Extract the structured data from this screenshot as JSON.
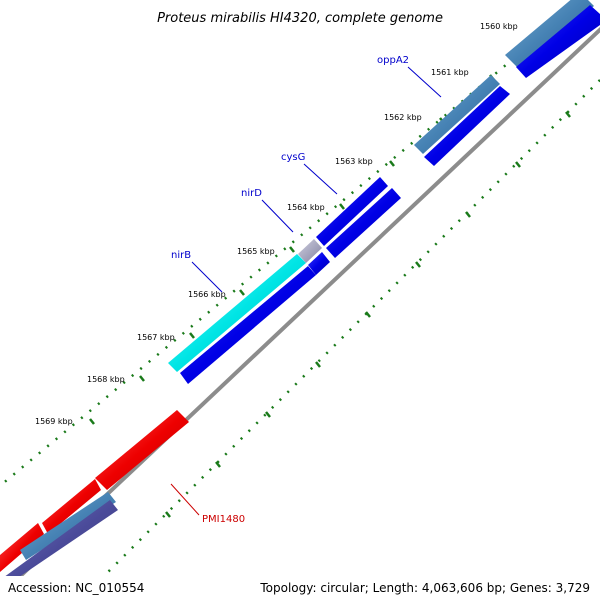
{
  "title": "Proteus mirabilis HI4320, complete genome",
  "footer": {
    "accession": "Accession: NC_010554",
    "summary": "Topology: circular; Length: 4,063,606 bp; Genes: 3,729"
  },
  "ticks": [
    "1560 kbp",
    "1561 kbp",
    "1562 kbp",
    "1563 kbp",
    "1564 kbp",
    "1565 kbp",
    "1566 kbp",
    "1567 kbp",
    "1568 kbp",
    "1569 kbp"
  ],
  "gene_labels": [
    {
      "name": "oppA2",
      "color": "#0000cc"
    },
    {
      "name": "cysG",
      "color": "#0000cc"
    },
    {
      "name": "nirD",
      "color": "#0000cc"
    },
    {
      "name": "nirB",
      "color": "#0000cc"
    },
    {
      "name": "PMI1480",
      "color": "#cc0000"
    }
  ],
  "colors": {
    "blue_feature": "#0000e6",
    "steel_feature": "#4682b4",
    "cyan_feature": "#00e5e5",
    "red_feature": "#ee0000",
    "purple_feature": "#4b4b9a",
    "backbone": "#8c8c8c",
    "tick": "#1a7a1a"
  }
}
